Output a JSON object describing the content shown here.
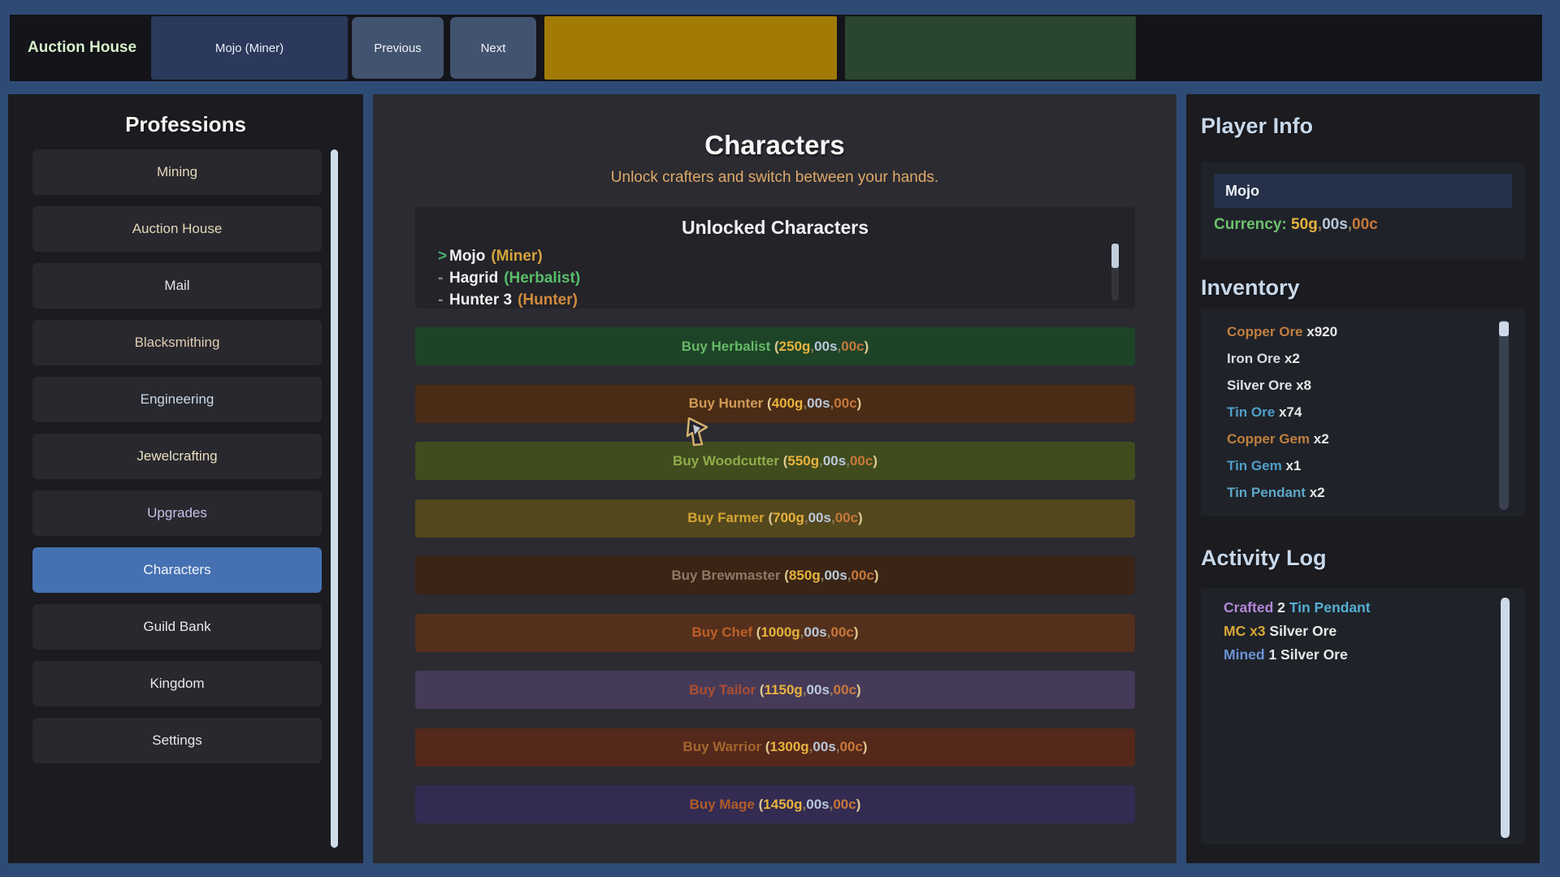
{
  "colors": {
    "frame_blue": "#2e4b75",
    "selected_blue": "#4571b2",
    "gold": "#e7b23d",
    "silver": "#b9c8da",
    "copper": "#c8783a",
    "comma": "#8b7a5a",
    "paren": "#ddc98f",
    "currency_label_green": "#6cc06c"
  },
  "top_bar": {
    "title": "Auction House",
    "character_button": "Mojo (Miner)",
    "previous_label": "Previous",
    "next_label": "Next",
    "gold_block_color": "#a27b07",
    "green_block_color": "#2a4530"
  },
  "sidebar": {
    "title": "Professions",
    "items": [
      {
        "label": "Mining",
        "color": "#e3d6b8",
        "selected": false
      },
      {
        "label": "Auction House",
        "color": "#e3d6b8",
        "selected": false
      },
      {
        "label": "Mail",
        "color": "#e6e6e6",
        "selected": false
      },
      {
        "label": "Blacksmithing",
        "color": "#e0cdb0",
        "selected": false
      },
      {
        "label": "Engineering",
        "color": "#ccd8e8",
        "selected": false
      },
      {
        "label": "Jewelcrafting",
        "color": "#e8dfc0",
        "selected": false
      },
      {
        "label": "Upgrades",
        "color": "#c9bfe8",
        "selected": false
      },
      {
        "label": "Characters",
        "color": "#f2f5f9",
        "selected": true
      },
      {
        "label": "Guild Bank",
        "color": "#e8e8e8",
        "selected": false
      },
      {
        "label": "Kingdom",
        "color": "#e8e8e8",
        "selected": false
      },
      {
        "label": "Settings",
        "color": "#e8e8e8",
        "selected": false
      }
    ]
  },
  "main": {
    "title": "Characters",
    "subtitle": "Unlock crafters and switch between your hands.",
    "unlocked": {
      "title": "Unlocked Characters",
      "entries": [
        {
          "prefix": ">",
          "prefix_color": "#4cae6e",
          "name": "Mojo",
          "profession": "(Miner)",
          "profession_color": "#d4a43c"
        },
        {
          "prefix": "-",
          "prefix_color": "#8a8f98",
          "name": "Hagrid",
          "profession": "(Herbalist)",
          "profession_color": "#58bd68"
        },
        {
          "prefix": "-",
          "prefix_color": "#8a8f98",
          "name": "Hunter 3",
          "profession": "(Hunter)",
          "profession_color": "#d08a3c"
        }
      ]
    },
    "buy_buttons": [
      {
        "label": "Buy Herbalist",
        "gold": "250g",
        "silver": "00s",
        "copper": "00c",
        "bg": "#1e4427",
        "label_color": "#67b868"
      },
      {
        "label": "Buy Hunter",
        "gold": "400g",
        "silver": "00s",
        "copper": "00c",
        "bg": "#4a2b15",
        "label_color": "#cf9a55"
      },
      {
        "label": "Buy Woodcutter",
        "gold": "550g",
        "silver": "00s",
        "copper": "00c",
        "bg": "#414c1e",
        "label_color": "#8fad49"
      },
      {
        "label": "Buy Farmer",
        "gold": "700g",
        "silver": "00s",
        "copper": "00c",
        "bg": "#53471d",
        "label_color": "#d3a432"
      },
      {
        "label": "Buy Brewmaster",
        "gold": "850g",
        "silver": "00s",
        "copper": "00c",
        "bg": "#3a2416",
        "label_color": "#8d7a64"
      },
      {
        "label": "Buy Chef",
        "gold": "1000g",
        "silver": "00s",
        "copper": "00c",
        "bg": "#54301c",
        "label_color": "#bf5f28"
      },
      {
        "label": "Buy Tailor",
        "gold": "1150g",
        "silver": "00s",
        "copper": "00c",
        "bg": "#463a59",
        "label_color": "#ad4f30"
      },
      {
        "label": "Buy Warrior",
        "gold": "1300g",
        "silver": "00s",
        "copper": "00c",
        "bg": "#54281b",
        "label_color": "#a3662c"
      },
      {
        "label": "Buy Mage",
        "gold": "1450g",
        "silver": "00s",
        "copper": "00c",
        "bg": "#332b52",
        "label_color": "#b15c28"
      }
    ]
  },
  "player": {
    "title": "Player Info",
    "name": "Mojo",
    "currency_label": "Currency: ",
    "currency_gold": "50g",
    "currency_silver": "00s",
    "currency_copper": "00c"
  },
  "inventory": {
    "title": "Inventory",
    "items": [
      {
        "name": "Copper Ore",
        "qty": "x920",
        "color": "#c07f3e"
      },
      {
        "name": "Iron Ore",
        "qty": "x2",
        "color": "#d8dce0"
      },
      {
        "name": "Silver Ore",
        "qty": "x8",
        "color": "#dfe3e8"
      },
      {
        "name": "Tin Ore",
        "qty": "x74",
        "color": "#4f9fc8"
      },
      {
        "name": "Copper Gem",
        "qty": "x2",
        "color": "#c07f3e"
      },
      {
        "name": "Tin Gem",
        "qty": "x1",
        "color": "#4f9fc8"
      },
      {
        "name": "Tin Pendant",
        "qty": "x2",
        "color": "#5da6c8"
      }
    ]
  },
  "activity": {
    "title": "Activity Log",
    "entries": [
      {
        "parts": [
          {
            "text": "Crafted",
            "color": "#b287d6"
          },
          {
            "text": "2",
            "color": "#e8e8e8"
          },
          {
            "text": "Tin Pendant",
            "color": "#55aed3"
          }
        ]
      },
      {
        "parts": [
          {
            "text": "MC x3",
            "color": "#d9a836"
          },
          {
            "text": "Silver Ore",
            "color": "#e8e8e8"
          }
        ]
      },
      {
        "parts": [
          {
            "text": "Mined",
            "color": "#6b93d6"
          },
          {
            "text": "1 Silver Ore",
            "color": "#e8e8e8"
          }
        ]
      }
    ]
  }
}
